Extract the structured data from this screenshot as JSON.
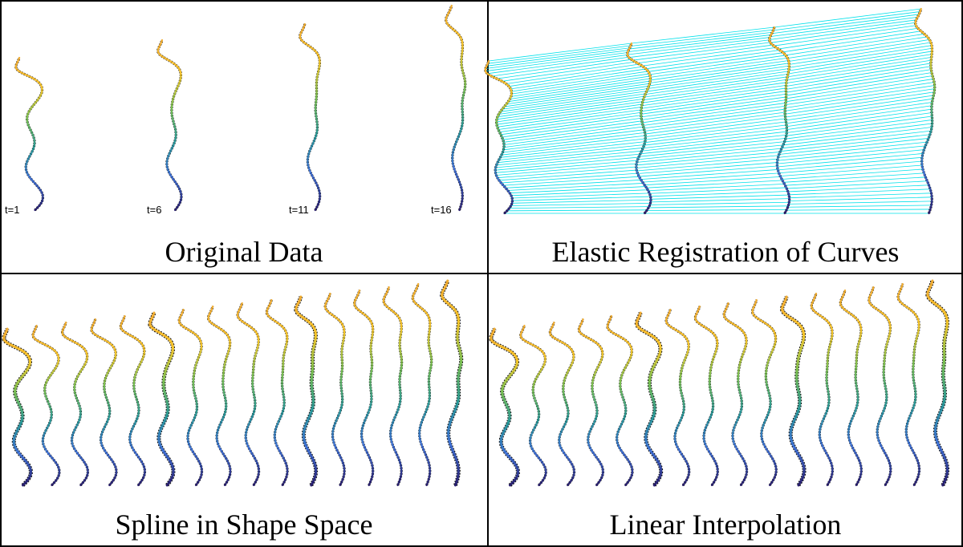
{
  "panels": [
    {
      "title": "Original Data",
      "labels": [
        "t=1",
        "t=6",
        "t=11",
        "t=16"
      ]
    },
    {
      "title": "Elastic Registration of Curves"
    },
    {
      "title": "Spline in Shape Space"
    },
    {
      "title": "Linear Interpolation"
    }
  ]
}
